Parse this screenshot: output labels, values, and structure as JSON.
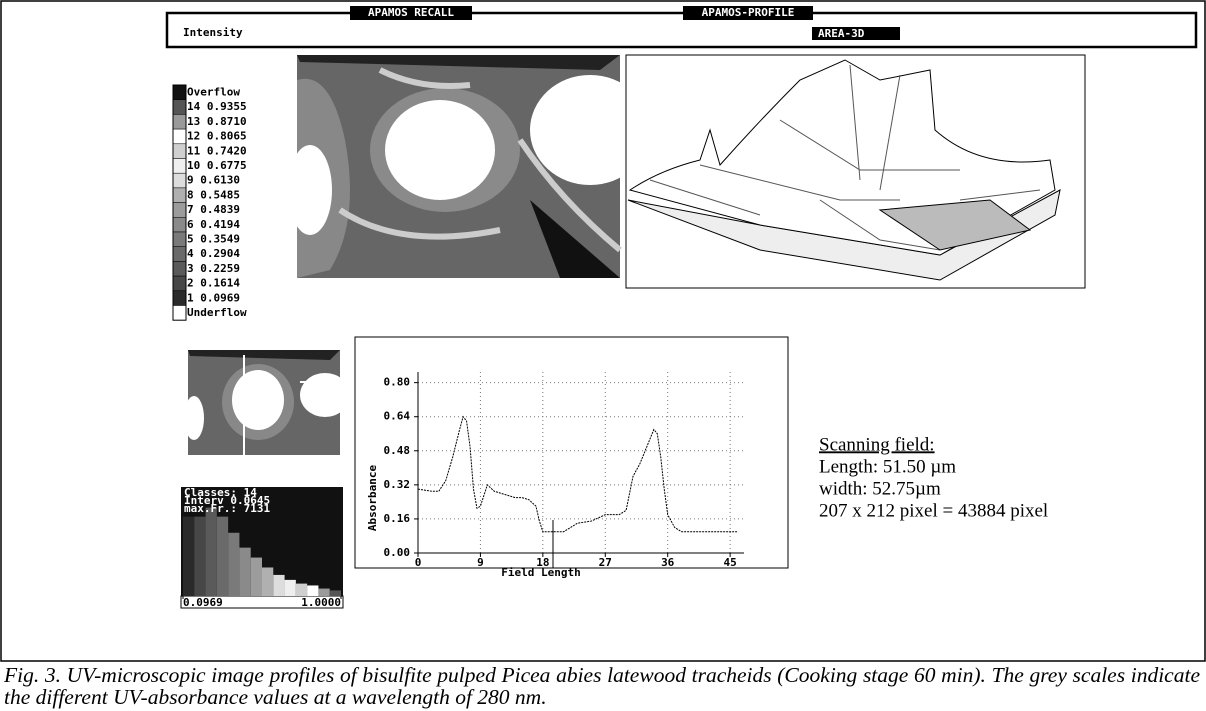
{
  "header": {
    "left_tab": "APAMOS RECALL",
    "right_tab": "APAMOS-PROFILE",
    "mode": "Intensity",
    "view": "AREA-3D"
  },
  "scale": {
    "entries": [
      {
        "label": "Overflow",
        "color": "#111111"
      },
      {
        "label": "14 0.9355",
        "color": "#555555"
      },
      {
        "label": "13 0.8710",
        "color": "#9a9a9a"
      },
      {
        "label": "12 0.8065",
        "color": "#ffffff"
      },
      {
        "label": "11 0.7420",
        "color": "#cfcfcf"
      },
      {
        "label": "10 0.6775",
        "color": "#efefef"
      },
      {
        "label": "9 0.6130",
        "color": "#dddddd"
      },
      {
        "label": "8 0.5485",
        "color": "#b0b0b0"
      },
      {
        "label": "7 0.4839",
        "color": "#9c9c9c"
      },
      {
        "label": "6 0.4194",
        "color": "#8a8a8a"
      },
      {
        "label": "5 0.3549",
        "color": "#7a7a7a"
      },
      {
        "label": "4 0.2904",
        "color": "#6a6a6a"
      },
      {
        "label": "3 0.2259",
        "color": "#5a5a5a"
      },
      {
        "label": "2 0.1614",
        "color": "#474747"
      },
      {
        "label": "1 0.0969",
        "color": "#2a2a2a"
      },
      {
        "label": "Underflow",
        "color": "#ffffff"
      }
    ]
  },
  "chart_data": [
    {
      "type": "line",
      "x_label": "Field Length",
      "y_label": "Absorbance",
      "xlim": [
        0,
        47
      ],
      "ylim": [
        0,
        0.85
      ],
      "xticks": [
        0,
        9,
        18,
        27,
        36,
        45
      ],
      "yticks": [
        {
          "value": 0,
          "label": "0.00"
        },
        {
          "value": 0.16,
          "label": "0.16"
        },
        {
          "value": 0.32,
          "label": "0.32"
        },
        {
          "value": 0.48,
          "label": "0.48"
        },
        {
          "value": 0.64,
          "label": "0.64"
        },
        {
          "value": 0.8,
          "label": "0.80"
        }
      ],
      "grid": true,
      "x": [
        0,
        2,
        3,
        4,
        5,
        6,
        6.5,
        7,
        7.5,
        8,
        8.5,
        9,
        10,
        11,
        12,
        13,
        14,
        15,
        16,
        17,
        17.5,
        18,
        19,
        20,
        21,
        22,
        23,
        25,
        27,
        29,
        30,
        30.5,
        31,
        32,
        33,
        34,
        34.5,
        35,
        35.5,
        36,
        37,
        38,
        40,
        43,
        46
      ],
      "values": [
        0.3,
        0.29,
        0.29,
        0.34,
        0.45,
        0.58,
        0.64,
        0.62,
        0.5,
        0.3,
        0.21,
        0.22,
        0.32,
        0.29,
        0.28,
        0.27,
        0.26,
        0.26,
        0.25,
        0.22,
        0.15,
        0.1,
        0.1,
        0.1,
        0.1,
        0.12,
        0.14,
        0.15,
        0.18,
        0.18,
        0.2,
        0.28,
        0.36,
        0.42,
        0.5,
        0.58,
        0.56,
        0.45,
        0.3,
        0.18,
        0.12,
        0.1,
        0.1,
        0.1,
        0.1
      ],
      "color": "#000000"
    },
    {
      "type": "bar",
      "annotations": [
        "Classes:   14",
        "Interv 0.0645",
        "max.Fr.: 7131"
      ],
      "xlim": [
        0.0969,
        1
      ],
      "xticks": [
        {
          "value": 0.0969,
          "label": "0.0969"
        },
        {
          "value": 1,
          "label": "1.0000"
        }
      ],
      "ylim": [
        0,
        7500
      ],
      "categories": [
        null,
        null,
        null,
        null,
        null,
        null,
        null,
        null,
        null,
        null,
        null,
        null,
        null,
        null
      ],
      "values": [
        6400,
        6400,
        7131,
        6400,
        5100,
        3900,
        3100,
        2300,
        1700,
        1300,
        1000,
        850,
        600,
        450
      ],
      "colors": [
        "#2a2a2a",
        "#474747",
        "#5a5a5a",
        "#6a6a6a",
        "#7a7a7a",
        "#8a8a8a",
        "#9c9c9c",
        "#b0b0b0",
        "#dddddd",
        "#efefef",
        "#cfcfcf",
        "#ffffff",
        "#9a9a9a",
        "#555555"
      ]
    }
  ],
  "scanning_field": {
    "title": "Scanning field:",
    "lines": [
      "Length: 51.50 µm",
      "width: 52.75µm",
      "207 x 212 pixel = 43884 pixel"
    ]
  },
  "caption": "Fig. 3. UV-microscopic image profiles of bisulfite pulped Picea abies latewood tracheids (Cooking stage 60 min). The grey scales indicate the different UV-absorbance values at a wavelength of 280 nm."
}
